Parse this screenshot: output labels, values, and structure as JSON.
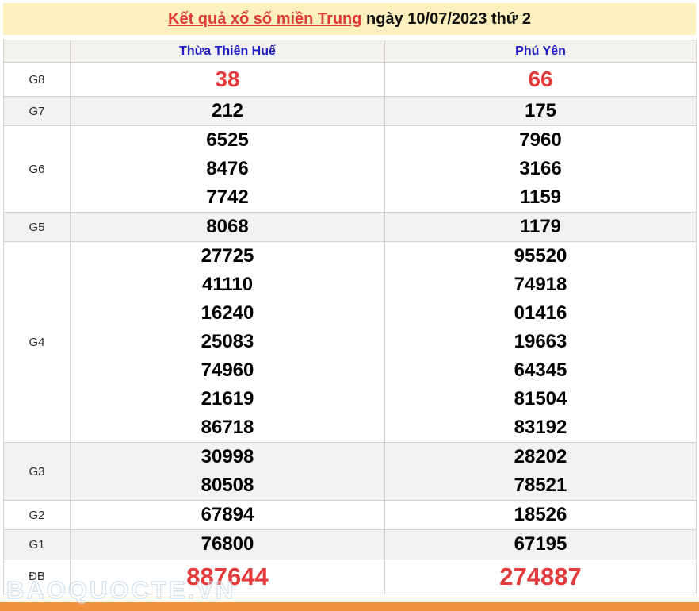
{
  "banner": {
    "title_link": "Kết quả xổ số miền Trung",
    "title_rest": " ngày 10/07/2023 thứ 2"
  },
  "table": {
    "header": {
      "corner": "",
      "hue": "Thừa Thiên Huế",
      "phu_yen": "Phú Yên"
    },
    "rows": [
      {
        "label": "G8",
        "style": "red-large",
        "hue": [
          "38"
        ],
        "phu_yen": [
          "66"
        ]
      },
      {
        "label": "G7",
        "style": "",
        "hue": [
          "212"
        ],
        "phu_yen": [
          "175"
        ]
      },
      {
        "label": "G6",
        "style": "",
        "hue": [
          "6525",
          "8476",
          "7742"
        ],
        "phu_yen": [
          "7960",
          "3166",
          "1159"
        ]
      },
      {
        "label": "G5",
        "style": "",
        "hue": [
          "8068"
        ],
        "phu_yen": [
          "1179"
        ]
      },
      {
        "label": "G4",
        "style": "",
        "hue": [
          "27725",
          "41110",
          "16240",
          "25083",
          "74960",
          "21619",
          "86718"
        ],
        "phu_yen": [
          "95520",
          "74918",
          "01416",
          "19663",
          "64345",
          "81504",
          "83192"
        ]
      },
      {
        "label": "G3",
        "style": "",
        "hue": [
          "30998",
          "80508"
        ],
        "phu_yen": [
          "28202",
          "78521"
        ]
      },
      {
        "label": "G2",
        "style": "",
        "hue": [
          "67894"
        ],
        "phu_yen": [
          "18526"
        ]
      },
      {
        "label": "G1",
        "style": "",
        "hue": [
          "76800"
        ],
        "phu_yen": [
          "67195"
        ]
      },
      {
        "label": "ĐB",
        "style": "red-xlarge",
        "hue": [
          "887644"
        ],
        "phu_yen": [
          "274887"
        ]
      }
    ]
  },
  "watermark": {
    "text": "BAOQUOCTE.VN"
  },
  "colors": {
    "banner_bg": "#fbf0be",
    "header_bg": "#f4f2ec",
    "stripe_bg": "#f2f2f2",
    "border": "#d6d2ca",
    "red_number": "#e23b3b",
    "title_red": "#e03c36",
    "link_blue": "#1f1fc4",
    "footer_bar": "#f0923f"
  }
}
